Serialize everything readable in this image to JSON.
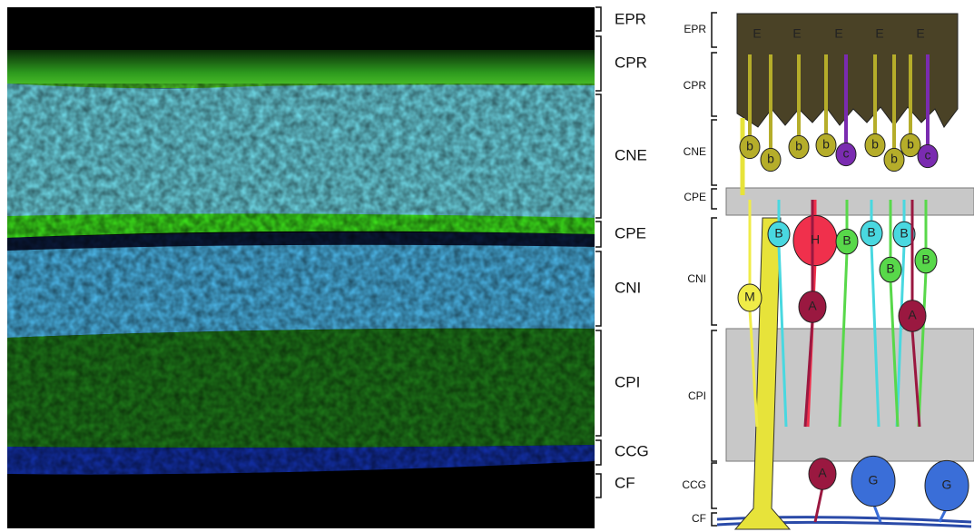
{
  "micrograph": {
    "layer_labels": [
      "EPR",
      "CPR",
      "CNE",
      "CPE",
      "CNI",
      "CPI",
      "CCG",
      "CF"
    ]
  },
  "diagram": {
    "layer_labels": [
      "EPR",
      "CPR",
      "CNE",
      "CPE",
      "CNI",
      "CPI",
      "CCG",
      "CF"
    ],
    "cell_labels": [
      "E",
      "E",
      "E",
      "E",
      "E",
      "b",
      "b",
      "b",
      "b",
      "b",
      "b",
      "b",
      "c",
      "c",
      "H",
      "B",
      "B",
      "B",
      "B",
      "B",
      "B",
      "M",
      "A",
      "A",
      "A",
      "G",
      "G"
    ]
  }
}
